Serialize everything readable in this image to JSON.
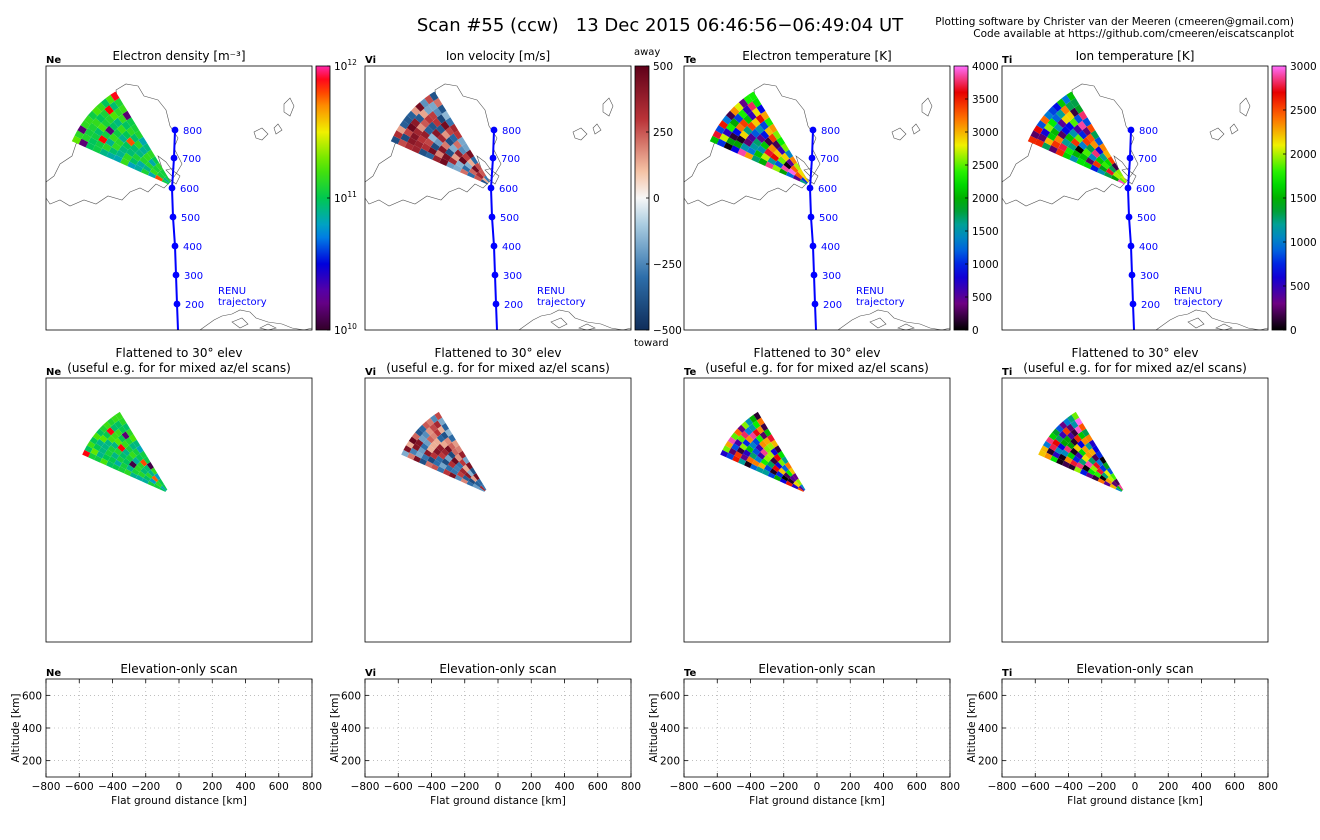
{
  "header": {
    "title": "Scan #55 (ccw)   13 Dec 2015 06:46:56−06:49:04 UT",
    "credit_line1": "Plotting software by Christer van der Meeren (cmeeren@gmail.com)",
    "credit_line2": "Code available at https://github.com/cmeeren/eiscatscanplot"
  },
  "rows": {
    "flattened_title_line1": "Flattened to 30° elev",
    "flattened_title_line2": "(useful e.g. for for mixed az/el scans)",
    "elevation_title": "Elevation-only scan"
  },
  "trajectory": {
    "label_line1": "RENU",
    "label_line2": "trajectory",
    "altitude_markers": [
      "800",
      "700",
      "600",
      "500",
      "400",
      "300",
      "200"
    ],
    "color": "#0000ff"
  },
  "panels": [
    {
      "tag": "Ne",
      "title": "Electron density [m⁻³]",
      "colormap": "rainbow",
      "colorbar": {
        "scale": "log",
        "ticks": [
          "10",
          "10",
          "10"
        ],
        "exponents": [
          "12",
          "11",
          "10"
        ],
        "tick_values": [
          1000000000000.0,
          100000000000.0,
          10000000000.0
        ],
        "range": [
          10000000000.0,
          1000000000000.0
        ]
      }
    },
    {
      "tag": "Vi",
      "title": "Ion velocity [m/s]",
      "colormap": "diverging",
      "colorbar": {
        "scale": "linear",
        "ticks": [
          "500",
          "250",
          "0",
          "−250",
          "−500"
        ],
        "top_label": "away",
        "bottom_label": "toward",
        "range": [
          -500,
          500
        ]
      }
    },
    {
      "tag": "Te",
      "title": "Electron temperature [K]",
      "colormap": "spectral",
      "colorbar": {
        "scale": "linear",
        "ticks": [
          "4000",
          "3500",
          "3000",
          "2500",
          "2000",
          "1500",
          "1000",
          "500",
          "0"
        ],
        "range": [
          0,
          4000
        ]
      }
    },
    {
      "tag": "Ti",
      "title": "Ion temperature [K]",
      "colormap": "spectral",
      "colorbar": {
        "scale": "linear",
        "ticks": [
          "3000",
          "2500",
          "2000",
          "1500",
          "1000",
          "500",
          "0"
        ],
        "range": [
          0,
          3000
        ]
      }
    }
  ],
  "chart_data": [
    {
      "type": "heatmap",
      "panel": "Ne",
      "title": "Electron density [m⁻³]",
      "scale": "log",
      "range": [
        10000000000.0,
        1000000000000.0
      ],
      "trajectory_altitudes_km": [
        800,
        700,
        600,
        500,
        400,
        300,
        200
      ]
    },
    {
      "type": "heatmap",
      "panel": "Vi",
      "title": "Ion velocity [m/s]",
      "range": [
        -500,
        500
      ],
      "trajectory_altitudes_km": [
        800,
        700,
        600,
        500,
        400,
        300,
        200
      ]
    },
    {
      "type": "heatmap",
      "panel": "Te",
      "title": "Electron temperature [K]",
      "range": [
        0,
        4000
      ],
      "trajectory_altitudes_km": [
        800,
        700,
        600,
        500,
        400,
        300,
        200
      ]
    },
    {
      "type": "heatmap",
      "panel": "Ti",
      "title": "Ion temperature [K]",
      "range": [
        0,
        3000
      ],
      "trajectory_altitudes_km": [
        800,
        700,
        600,
        500,
        400,
        300,
        200
      ]
    },
    {
      "type": "scatter",
      "title": "Elevation-only scan",
      "series": [],
      "xlabel": "Flat ground distance [km]",
      "ylabel": "Altitude [km]",
      "xlim": [
        -800,
        800
      ],
      "ylim": [
        100,
        700
      ],
      "xticks": [
        -800,
        -600,
        -400,
        -200,
        0,
        200,
        400,
        600,
        800
      ],
      "yticks": [
        200,
        400,
        600
      ],
      "xtick_labels": [
        "−800",
        "−600",
        "−400",
        "−200",
        "0",
        "200",
        "400",
        "600",
        "800"
      ],
      "ytick_labels": [
        "200",
        "400",
        "600"
      ],
      "grid": true
    }
  ]
}
